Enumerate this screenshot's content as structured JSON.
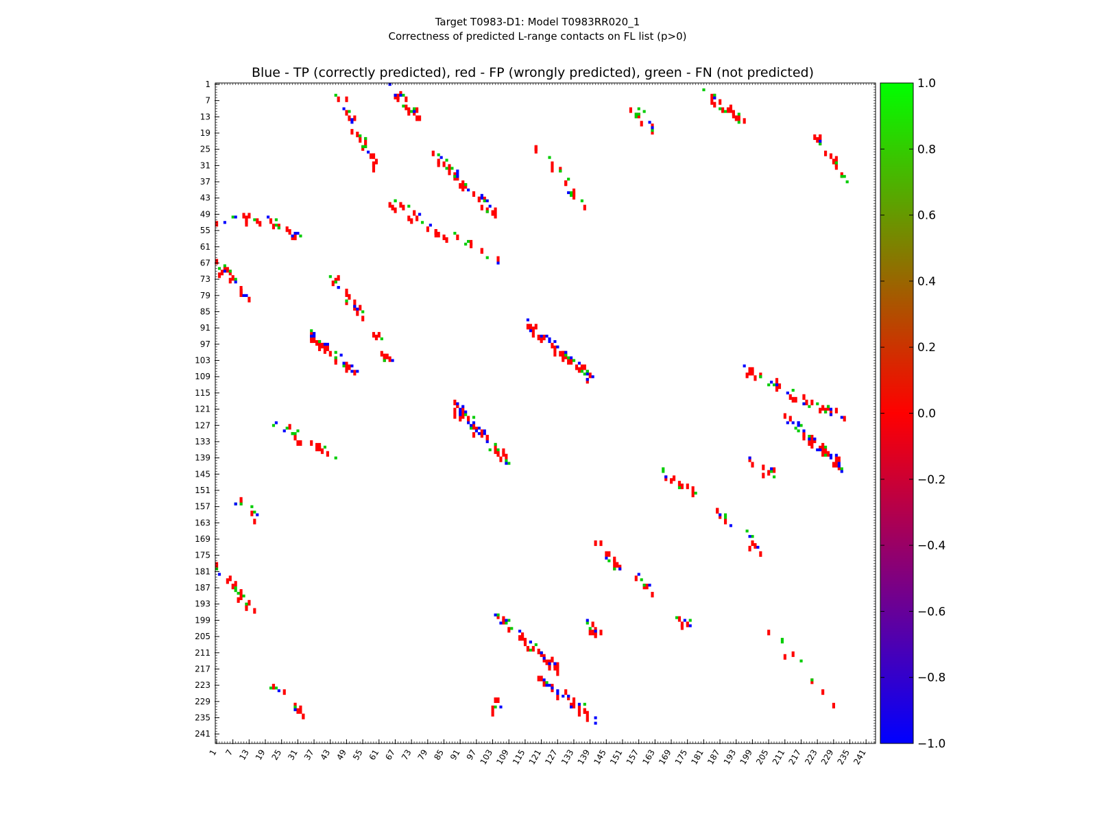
{
  "suptitle_line1": "Target T0983-D1: Model T0983RR020_1",
  "suptitle_line2": "Correctness of predicted L-range contacts on FL list (p>0)",
  "chart_data": {
    "type": "heatmap",
    "title": "Blue - TP (correctly predicted), red - FP (wrongly predicted), green - FN (not predicted)",
    "xlabel": "",
    "ylabel": "",
    "n_residues": 244,
    "x_range": [
      1,
      244
    ],
    "y_range": [
      1,
      244
    ],
    "y_inverted": true,
    "x_tick_labels": [
      "1",
      "7",
      "13",
      "19",
      "25",
      "31",
      "37",
      "43",
      "49",
      "55",
      "61",
      "67",
      "73",
      "79",
      "85",
      "91",
      "97",
      "103",
      "109",
      "115",
      "121",
      "127",
      "133",
      "139",
      "145",
      "151",
      "157",
      "163",
      "169",
      "175",
      "181",
      "187",
      "193",
      "199",
      "205",
      "211",
      "217",
      "223",
      "229",
      "235",
      "241"
    ],
    "y_tick_labels": [
      "1",
      "7",
      "13",
      "19",
      "25",
      "31",
      "37",
      "43",
      "49",
      "55",
      "61",
      "67",
      "73",
      "79",
      "85",
      "91",
      "97",
      "103",
      "109",
      "115",
      "121",
      "127",
      "133",
      "139",
      "145",
      "151",
      "157",
      "163",
      "169",
      "175",
      "181",
      "187",
      "193",
      "199",
      "205",
      "211",
      "217",
      "223",
      "229",
      "235",
      "241"
    ],
    "legend": {
      "blue": "TP (correctly predicted)",
      "red": "FP (wrongly predicted)",
      "green": "FN (not predicted)"
    },
    "colorbar": {
      "range": [
        -1.0,
        1.0
      ],
      "tick_labels": [
        "1.0",
        "0.8",
        "0.6",
        "0.4",
        "0.2",
        "0.0",
        "−0.2",
        "−0.4",
        "−0.6",
        "−0.8",
        "−1.0"
      ],
      "colors": {
        "low": "#0000ff",
        "mid": "#ff0000",
        "high": "#00ff00"
      }
    },
    "colors": {
      "TP": "#0000ff",
      "FP": "#ff0000",
      "FN": "#00cc00"
    },
    "clusters": [
      {
        "x": [
          66,
          75
        ],
        "y": [
          1,
          13
        ],
        "TP": 4,
        "FP": 14,
        "FN": 4
      },
      {
        "x": [
          46,
          61
        ],
        "y": [
          5,
          33
        ],
        "TP": 4,
        "FP": 18,
        "FN": 6
      },
      {
        "x": [
          154,
          165
        ],
        "y": [
          8,
          20
        ],
        "TP": 2,
        "FP": 6,
        "FN": 6
      },
      {
        "x": [
          179,
          195
        ],
        "y": [
          1,
          14
        ],
        "TP": 1,
        "FP": 14,
        "FN": 6
      },
      {
        "x": [
          222,
          233
        ],
        "y": [
          18,
          36
        ],
        "TP": 1,
        "FP": 12,
        "FN": 6
      },
      {
        "x": [
          66,
          85
        ],
        "y": [
          44,
          57
        ],
        "TP": 2,
        "FP": 16,
        "FN": 4
      },
      {
        "x": [
          82,
          104
        ],
        "y": [
          27,
          49
        ],
        "TP": 10,
        "FP": 22,
        "FN": 8
      },
      {
        "x": [
          119,
          137
        ],
        "y": [
          24,
          45
        ],
        "TP": 1,
        "FP": 12,
        "FN": 6
      },
      {
        "x": [
          89,
          104
        ],
        "y": [
          56,
          66
        ],
        "TP": 1,
        "FP": 6,
        "FN": 4
      },
      {
        "x": [
          1,
          17
        ],
        "y": [
          48,
          52
        ],
        "TP": 2,
        "FP": 8,
        "FN": 2
      },
      {
        "x": [
          20,
          32
        ],
        "y": [
          51,
          57
        ],
        "TP": 4,
        "FP": 8,
        "FN": 4
      },
      {
        "x": [
          1,
          13
        ],
        "y": [
          66,
          80
        ],
        "TP": 4,
        "FP": 14,
        "FN": 4
      },
      {
        "x": [
          44,
          57
        ],
        "y": [
          73,
          89
        ],
        "TP": 4,
        "FP": 14,
        "FN": 4
      },
      {
        "x": [
          35,
          52
        ],
        "y": [
          93,
          107
        ],
        "TP": 10,
        "FP": 18,
        "FN": 6
      },
      {
        "x": [
          58,
          66
        ],
        "y": [
          90,
          105
        ],
        "TP": 1,
        "FP": 8,
        "FN": 2
      },
      {
        "x": [
          116,
          140
        ],
        "y": [
          89,
          110
        ],
        "TP": 14,
        "FP": 26,
        "FN": 8
      },
      {
        "x": [
          196,
          234
        ],
        "y": [
          106,
          125
        ],
        "TP": 8,
        "FP": 26,
        "FN": 10
      },
      {
        "x": [
          88,
          109
        ],
        "y": [
          119,
          140
        ],
        "TP": 16,
        "FP": 26,
        "FN": 8
      },
      {
        "x": [
          21,
          45
        ],
        "y": [
          126,
          138
        ],
        "TP": 2,
        "FP": 12,
        "FN": 8
      },
      {
        "x": [
          212,
          234
        ],
        "y": [
          124,
          144
        ],
        "TP": 16,
        "FP": 22,
        "FN": 8
      },
      {
        "x": [
          198,
          207
        ],
        "y": [
          139,
          145
        ],
        "TP": 2,
        "FP": 6,
        "FN": 2
      },
      {
        "x": [
          165,
          177
        ],
        "y": [
          143,
          152
        ],
        "TP": 1,
        "FP": 8,
        "FN": 4
      },
      {
        "x": [
          8,
          18
        ],
        "y": [
          154,
          163
        ],
        "TP": 2,
        "FP": 4,
        "FN": 4
      },
      {
        "x": [
          183,
          191
        ],
        "y": [
          157,
          163
        ],
        "TP": 2,
        "FP": 4,
        "FN": 2
      },
      {
        "x": [
          141,
          150
        ],
        "y": [
          169,
          180
        ],
        "TP": 2,
        "FP": 10,
        "FN": 2
      },
      {
        "x": [
          197,
          203
        ],
        "y": [
          167,
          177
        ],
        "TP": 2,
        "FP": 4,
        "FN": 2
      },
      {
        "x": [
          157,
          163
        ],
        "y": [
          183,
          189
        ],
        "TP": 2,
        "FP": 4,
        "FN": 2
      },
      {
        "x": [
          1,
          15
        ],
        "y": [
          178,
          197
        ],
        "TP": 1,
        "FP": 12,
        "FN": 6
      },
      {
        "x": [
          105,
          128
        ],
        "y": [
          197,
          218
        ],
        "TP": 10,
        "FP": 26,
        "FN": 8
      },
      {
        "x": [
          137,
          143
        ],
        "y": [
          199,
          205
        ],
        "TP": 2,
        "FP": 8,
        "FN": 2
      },
      {
        "x": [
          171,
          178
        ],
        "y": [
          198,
          201
        ],
        "TP": 2,
        "FP": 4,
        "FN": 2
      },
      {
        "x": [
          20,
          35
        ],
        "y": [
          222,
          235
        ],
        "TP": 2,
        "FP": 10,
        "FN": 4
      },
      {
        "x": [
          102,
          106
        ],
        "y": [
          228,
          233
        ],
        "TP": 1,
        "FP": 4,
        "FN": 1
      },
      {
        "x": [
          121,
          141
        ],
        "y": [
          220,
          236
        ],
        "TP": 12,
        "FP": 18,
        "FN": 2
      },
      {
        "x": [
          203,
          232
        ],
        "y": [
          201,
          231
        ],
        "TP": 0,
        "FP": 6,
        "FN": 4
      }
    ]
  }
}
